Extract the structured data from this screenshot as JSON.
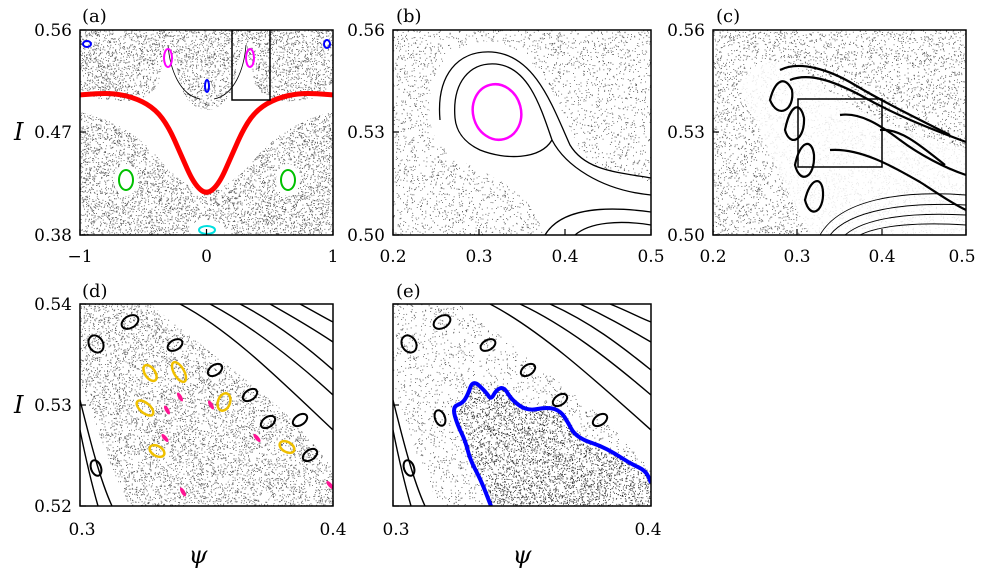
{
  "chart_data": [
    {
      "type": "scatter",
      "panel": "(a)",
      "xlim": [
        -1,
        1
      ],
      "ylim": [
        0.38,
        0.56
      ],
      "x_ticks": [
        "−1",
        "0",
        "1"
      ],
      "y_ticks": [
        "0.38",
        "0.47",
        "0.56"
      ],
      "xlabel": "",
      "ylabel": "I",
      "inset_box": {
        "x": [
          0.2,
          0.5
        ],
        "y": [
          0.5,
          0.56
        ]
      },
      "series": [
        {
          "color": "#ff0000",
          "kind": "separatrix",
          "points": [
            [
              -1,
              0.503
            ],
            [
              -0.75,
              0.505
            ],
            [
              -0.55,
              0.5
            ],
            [
              -0.4,
              0.49
            ],
            [
              -0.3,
              0.475
            ],
            [
              -0.2,
              0.45
            ],
            [
              -0.1,
              0.425
            ],
            [
              0,
              0.415
            ],
            [
              0.1,
              0.425
            ],
            [
              0.2,
              0.45
            ],
            [
              0.3,
              0.475
            ],
            [
              0.4,
              0.49
            ],
            [
              0.55,
              0.5
            ],
            [
              0.75,
              0.505
            ],
            [
              1,
              0.503
            ]
          ]
        },
        {
          "color": "#ff00ff",
          "kind": "island",
          "centers": [
            [
              -0.33,
              0.543
            ],
            [
              0.34,
              0.543
            ]
          ]
        },
        {
          "color": "#00c000",
          "kind": "island",
          "centers": [
            [
              -0.65,
              0.43
            ],
            [
              0.65,
              0.43
            ]
          ]
        },
        {
          "color": "#0000ff",
          "kind": "island",
          "centers": [
            [
              -0.97,
              0.556
            ],
            [
              0.97,
              0.556
            ],
            [
              0,
              0.514
            ]
          ]
        },
        {
          "color": "#00e0e0",
          "kind": "island",
          "centers": [
            [
              0,
              0.385
            ]
          ]
        }
      ]
    },
    {
      "type": "scatter",
      "panel": "(b)",
      "xlim": [
        0.2,
        0.5
      ],
      "ylim": [
        0.5,
        0.56
      ],
      "x_ticks": [
        "0.2",
        "0.3",
        "0.4",
        "0.5"
      ],
      "y_ticks": [
        "0.50",
        "0.53",
        "0.56"
      ],
      "series": [
        {
          "color": "#ff00ff",
          "kind": "island",
          "centers": [
            [
              0.32,
              0.539
            ]
          ]
        },
        {
          "color": "#000000",
          "kind": "invariant curves"
        }
      ]
    },
    {
      "type": "scatter",
      "panel": "(c)",
      "xlim": [
        0.2,
        0.5
      ],
      "ylim": [
        0.5,
        0.56
      ],
      "x_ticks": [
        "0.2",
        "0.3",
        "0.4",
        "0.5"
      ],
      "y_ticks": [
        "0.50",
        "0.53",
        "0.56"
      ],
      "inset_box": {
        "x": [
          0.3,
          0.4
        ],
        "y": [
          0.52,
          0.54
        ]
      },
      "series": [
        {
          "color": "#000000",
          "kind": "island chain"
        }
      ]
    },
    {
      "type": "scatter",
      "panel": "(d)",
      "xlim": [
        0.3,
        0.4
      ],
      "ylim": [
        0.52,
        0.54
      ],
      "x_ticks": [
        "0.3",
        "0.4"
      ],
      "y_ticks": [
        "0.52",
        "0.53",
        "0.54"
      ],
      "xlabel": "ψ",
      "ylabel": "I",
      "series": [
        {
          "color": "#f0c000",
          "kind": "island",
          "centers": [
            [
              0.322,
              0.5314
            ],
            [
              0.334,
              0.5323
            ],
            [
              0.32,
              0.5296
            ],
            [
              0.35,
              0.5296
            ],
            [
              0.323,
              0.5257
            ],
            [
              0.382,
              0.526
            ]
          ]
        },
        {
          "color": "#ff1493",
          "kind": "island",
          "centers": [
            [
              0.34,
              0.5296
            ],
            [
              0.345,
              0.5285
            ],
            [
              0.334,
              0.5275
            ],
            [
              0.325,
              0.5265
            ],
            [
              0.356,
              0.5289
            ],
            [
              0.368,
              0.5272
            ],
            [
              0.34,
              0.5213
            ],
            [
              0.398,
              0.5222
            ]
          ]
        }
      ]
    },
    {
      "type": "scatter",
      "panel": "(e)",
      "xlim": [
        0.3,
        0.4
      ],
      "ylim": [
        0.52,
        0.54
      ],
      "x_ticks": [
        "0.3",
        "0.4"
      ],
      "y_ticks": [],
      "xlabel": "ψ",
      "series": [
        {
          "color": "#0000ff",
          "kind": "boundary",
          "points": [
            [
              0.338,
              0.52
            ],
            [
              0.334,
              0.5226
            ],
            [
              0.33,
              0.5245
            ],
            [
              0.328,
              0.5265
            ],
            [
              0.325,
              0.528
            ],
            [
              0.323,
              0.5298
            ],
            [
              0.327,
              0.5302
            ],
            [
              0.329,
              0.531
            ],
            [
              0.331,
              0.5325
            ],
            [
              0.336,
              0.5313
            ],
            [
              0.338,
              0.5305
            ],
            [
              0.34,
              0.5315
            ],
            [
              0.343,
              0.5318
            ],
            [
              0.346,
              0.5305
            ],
            [
              0.352,
              0.5294
            ],
            [
              0.36,
              0.5298
            ],
            [
              0.365,
              0.5294
            ],
            [
              0.368,
              0.5282
            ],
            [
              0.37,
              0.5272
            ],
            [
              0.374,
              0.5265
            ],
            [
              0.38,
              0.526
            ],
            [
              0.386,
              0.5252
            ],
            [
              0.392,
              0.5242
            ],
            [
              0.398,
              0.5235
            ],
            [
              0.4,
              0.5223
            ]
          ]
        }
      ]
    }
  ]
}
